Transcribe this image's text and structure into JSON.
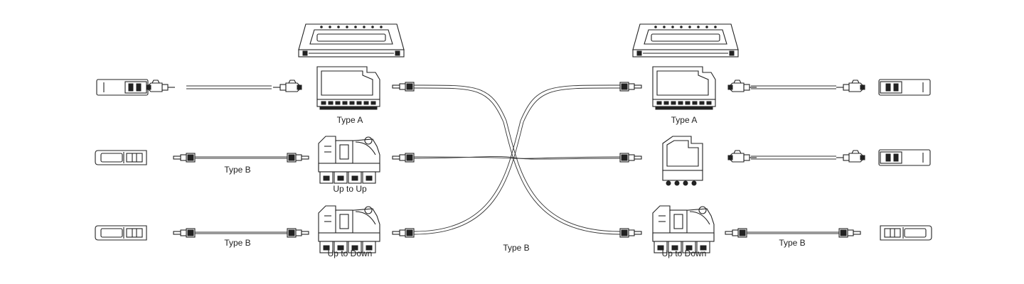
{
  "diagram": {
    "left_side": {
      "row1_module_label": "Type A",
      "row2_cable_label": "Type B",
      "row2_module_label": "Up to Up",
      "row3_cable_label": "Type B",
      "row3_module_label": "Up to Down"
    },
    "trunk_label": "Type B",
    "right_side": {
      "row1_module_label": "Type A",
      "row3_module_label": "Up to Down",
      "row3_cable_label": "Type B"
    }
  }
}
